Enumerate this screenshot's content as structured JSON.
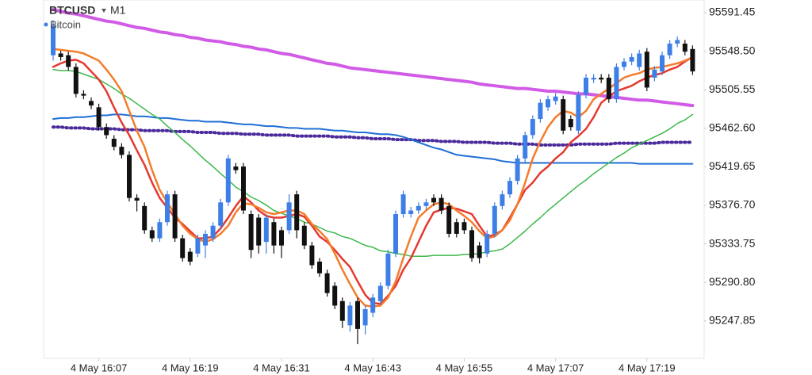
{
  "chart_data": {
    "type": "candlestick",
    "title": "BTCUSD",
    "timeframe": "M1",
    "subtitle": "Bitcoin",
    "up_color": "#3d7fe6",
    "down_color": "#111111",
    "ylim": [
      95206.2,
      95605.6
    ],
    "yticks": [
      95591.45,
      {
        "value": 95548.5,
        "label": "95548.50"
      },
      95505.55,
      {
        "value": 95462.6,
        "label": "95462.60"
      },
      95419.65,
      {
        "value": 95376.7,
        "label": "95376.70"
      },
      95333.75,
      {
        "value": 95290.8,
        "label": "95290.80"
      },
      95247.85
    ],
    "categories": [
      null,
      null,
      null,
      null,
      null,
      null,
      "4 May 16:07",
      null,
      null,
      null,
      null,
      null,
      null,
      null,
      null,
      null,
      null,
      null,
      "4 May 16:19",
      null,
      null,
      null,
      null,
      null,
      null,
      null,
      null,
      null,
      null,
      null,
      "4 May 16:31",
      null,
      null,
      null,
      null,
      null,
      null,
      null,
      null,
      null,
      null,
      null,
      "4 May 16:43",
      null,
      null,
      null,
      null,
      null,
      null,
      null,
      null,
      null,
      null,
      null,
      "4 May 16:55",
      null,
      null,
      null,
      null,
      null,
      null,
      null,
      null,
      null,
      null,
      null,
      "4 May 17:07",
      null,
      null,
      null,
      null,
      null,
      null,
      null,
      null,
      null,
      null,
      null,
      "4 May 17:19",
      null,
      null,
      null,
      null,
      null,
      null
    ],
    "open": [
      95544,
      95546,
      95544,
      95531,
      95501,
      95493,
      95486,
      95464,
      95451,
      95442,
      95433,
      95385,
      95376,
      95349,
      95340,
      95358,
      95389,
      95340,
      95325,
      95323,
      95332,
      95340,
      95354,
      95380,
      95420,
      95420,
      95367,
      95363,
      95336,
      95358,
      95349,
      95349,
      95389,
      95354,
      95332,
      95314,
      95301,
      95287,
      95270,
      95243,
      95270,
      95243,
      95257,
      95270,
      95287,
      95323,
      95367,
      95367,
      95371,
      95376,
      95385,
      95385,
      95376,
      95358,
      95358,
      95349,
      95332,
      95323,
      95345,
      95376,
      95389,
      95404,
      95429,
      95455,
      95473,
      95486,
      95493,
      95495,
      95473,
      95460,
      95500,
      95517,
      95519,
      95519,
      95495,
      95531,
      95537,
      95531,
      95548,
      95519,
      95526,
      95544,
      95557,
      95557,
      95551
    ],
    "high": [
      95583,
      95549,
      95548,
      95535,
      95505,
      95497,
      95490,
      95468,
      95455,
      95446,
      95437,
      95389,
      95380,
      95353,
      95362,
      95393,
      95393,
      95344,
      95329,
      95344,
      95349,
      95358,
      95384,
      95433,
      95424,
      95424,
      95371,
      95367,
      95367,
      95362,
      95353,
      95389,
      95393,
      95358,
      95336,
      95318,
      95305,
      95291,
      95274,
      95269,
      95274,
      95265,
      95278,
      95291,
      95327,
      95371,
      95393,
      95375,
      95380,
      95384,
      95389,
      95389,
      95380,
      95362,
      95362,
      95353,
      95336,
      95349,
      95380,
      95393,
      95408,
      95433,
      95459,
      95477,
      95495,
      95499,
      95502,
      95499,
      95477,
      95504,
      95523,
      95523,
      95523,
      95523,
      95535,
      95541,
      95546,
      95550,
      95552,
      95532,
      95548,
      95561,
      95565,
      95561,
      95555
    ],
    "low": [
      95538,
      95538,
      95527,
      95497,
      95495,
      95484,
      95460,
      95451,
      95438,
      95429,
      95381,
      95370,
      95345,
      95336,
      95336,
      95354,
      95336,
      95314,
      95310,
      95319,
      95318,
      95336,
      95350,
      95376,
      95412,
      95367,
      95318,
      95323,
      95323,
      95323,
      95318,
      95345,
      95340,
      95328,
      95306,
      95297,
      95275,
      95261,
      95240,
      95236,
      95222,
      95233,
      95252,
      95266,
      95283,
      95319,
      95363,
      95363,
      95367,
      95372,
      95376,
      95367,
      95341,
      95341,
      95345,
      95314,
      95312,
      95319,
      95341,
      95372,
      95385,
      95400,
      95425,
      95451,
      95469,
      95482,
      95489,
      95456,
      95460,
      95456,
      95496,
      95513,
      95513,
      95491,
      95491,
      95527,
      95533,
      95527,
      95504,
      95515,
      95522,
      95540,
      95553,
      95544,
      95522
    ],
    "close": [
      95577,
      95542,
      95531,
      95501,
      95499,
      95488,
      95464,
      95455,
      95442,
      95433,
      95385,
      95382,
      95349,
      95340,
      95358,
      95389,
      95340,
      95318,
      95314,
      95340,
      95345,
      95354,
      95380,
      95429,
      95416,
      95371,
      95327,
      95332,
      95363,
      95332,
      95332,
      95380,
      95349,
      95332,
      95310,
      95301,
      95279,
      95265,
      95248,
      95265,
      95239,
      95261,
      95274,
      95287,
      95323,
      95367,
      95389,
      95371,
      95376,
      95380,
      95380,
      95371,
      95345,
      95345,
      95349,
      95318,
      95318,
      95345,
      95376,
      95389,
      95404,
      95429,
      95455,
      95473,
      95491,
      95495,
      95498,
      95460,
      95464,
      95500,
      95519,
      95519,
      95517,
      95495,
      95531,
      95537,
      95542,
      95546,
      95508,
      95528,
      95544,
      95557,
      95561,
      95548,
      95526
    ],
    "lines": [
      {
        "color": "#d15be6",
        "width": 4,
        "style": "solid",
        "values": [
          95595,
          95593,
          95591,
          95590,
          95588,
          95586,
          95584,
          95582,
          95581,
          95579,
          95577,
          95575,
          95574,
          95572,
          95570,
          95569,
          95567,
          95566,
          95564,
          95563,
          95561,
          95560,
          95559,
          95557,
          95556,
          95554,
          95553,
          95551,
          95550,
          95548,
          95546,
          95545,
          95543,
          95541,
          95539,
          95537,
          95535,
          95534,
          95532,
          95530,
          95529,
          95528,
          95527,
          95526,
          95525,
          95524,
          95523,
          95522,
          95521,
          95520,
          95519,
          95518,
          95517,
          95516,
          95515,
          95514,
          95512,
          95511,
          95510,
          95509,
          95508,
          95507,
          95507,
          95506,
          95505,
          95504,
          95504,
          95503,
          95502,
          95501,
          95501,
          95500,
          95499,
          95498,
          95497,
          95496,
          95495,
          95494,
          95494,
          95493,
          95492,
          95491,
          95490,
          95489,
          95488
        ]
      },
      {
        "color": "#4b2a9c",
        "width": 4,
        "style": "dotted",
        "values": [
          95464,
          95464,
          95463,
          95463,
          95463,
          95462,
          95462,
          95462,
          95462,
          95461,
          95461,
          95461,
          95460,
          95460,
          95460,
          95460,
          95459,
          95459,
          95459,
          95458,
          95458,
          95458,
          95457,
          95457,
          95457,
          95456,
          95456,
          95456,
          95455,
          95455,
          95455,
          95455,
          95454,
          95454,
          95454,
          95454,
          95454,
          95453,
          95453,
          95453,
          95452,
          95452,
          95451,
          95451,
          95451,
          95450,
          95450,
          95450,
          95449,
          95449,
          95449,
          95448,
          95448,
          95448,
          95447,
          95447,
          95447,
          95447,
          95446,
          95446,
          95446,
          95445,
          95445,
          95445,
          95444,
          95444,
          95444,
          95444,
          95444,
          95445,
          95445,
          95445,
          95445,
          95445,
          95446,
          95446,
          95446,
          95446,
          95446,
          95446,
          95447,
          95447,
          95447,
          95447,
          95447
        ]
      },
      {
        "color": "#1f6fd6",
        "width": 2,
        "style": "solid",
        "values": [
          95473,
          95474,
          95474,
          95475,
          95475,
          95476,
          95477,
          95477,
          95478,
          95478,
          95477,
          95476,
          95476,
          95475,
          95474,
          95474,
          95473,
          95472,
          95471,
          95471,
          95470,
          95470,
          95470,
          95469,
          95468,
          95467,
          95467,
          95466,
          95465,
          95465,
          95464,
          95463,
          95463,
          95462,
          95462,
          95462,
          95461,
          95460,
          95460,
          95459,
          95458,
          95458,
          95457,
          95456,
          95456,
          95455,
          95453,
          95450,
          95447,
          95444,
          95441,
          95439,
          95436,
          95433,
          95432,
          95431,
          95430,
          95429,
          95428,
          95426,
          95425,
          95424,
          95424,
          95424,
          95424,
          95424,
          95424,
          95424,
          95424,
          95424,
          95424,
          95424,
          95424,
          95424,
          95424,
          95424,
          95424,
          95423,
          95423,
          95423,
          95423,
          95423,
          95423,
          95423,
          95423
        ]
      },
      {
        "color": "#3cb84a",
        "width": 1.5,
        "style": "solid",
        "values": [
          95528,
          95527,
          95527,
          95526,
          95523,
          95520,
          95517,
          95512,
          95507,
          95501,
          95496,
          95490,
          95484,
          95478,
          95473,
          95465,
          95458,
          95450,
          95443,
          95435,
          95427,
          95420,
          95412,
          95405,
          95397,
          95392,
          95386,
          95382,
          95377,
          95371,
          95368,
          95365,
          95362,
          95358,
          95356,
          95352,
          95348,
          95346,
          95342,
          95340,
          95336,
          95332,
          95330,
          95326,
          95325,
          95323,
          95322,
          95320,
          95320,
          95320,
          95321,
          95321,
          95321,
          95321,
          95322,
          95322,
          95323,
          95325,
          95326,
          95328,
          95334,
          95341,
          95348,
          95356,
          95363,
          95371,
          95378,
          95385,
          95392,
          95399,
          95405,
          95412,
          95418,
          95424,
          95430,
          95435,
          95441,
          95445,
          95449,
          95453,
          95457,
          95462,
          95468,
          95472,
          95478
        ]
      },
      {
        "color": "#e5392f",
        "width": 2.5,
        "style": "solid",
        "values": [
          95531,
          95535,
          95538,
          95539,
          95535,
          95526,
          95517,
          95504,
          95486,
          95469,
          95455,
          95438,
          95422,
          95402,
          95385,
          95374,
          95363,
          95356,
          95348,
          95340,
          95340,
          95342,
          95351,
          95363,
          95376,
          95387,
          95380,
          95371,
          95365,
          95363,
          95363,
          95365,
          95367,
          95364,
          95354,
          95342,
          95336,
          95327,
          95317,
          95308,
          95292,
          95277,
          95268,
          95267,
          95276,
          95287,
          95305,
          95318,
          95336,
          95354,
          95369,
          95372,
          95374,
          95373,
          95370,
          95367,
          95354,
          95342,
          95344,
          95349,
          95363,
          95378,
          95394,
          95402,
          95413,
          95420,
          95429,
          95436,
          95447,
          95454,
          95462,
          95475,
          95491,
          95498,
          95504,
          95507,
          95510,
          95515,
          95519,
          95522,
          95524,
          95528,
          95531,
          95537,
          95542
        ]
      },
      {
        "color": "#f47c2c",
        "width": 2.5,
        "style": "solid",
        "values": [
          95551,
          95550,
          95549,
          95548,
          95546,
          95542,
          95538,
          95528,
          95517,
          95504,
          95482,
          95460,
          95442,
          95416,
          95394,
          95380,
          95367,
          95354,
          95345,
          95339,
          95336,
          95339,
          95345,
          95354,
          95369,
          95379,
          95378,
          95374,
          95369,
          95367,
          95369,
          95371,
          95371,
          95367,
          95356,
          95348,
          95339,
          95323,
          95305,
          95289,
          95274,
          95265,
          95264,
          95265,
          95274,
          95292,
          95318,
          95342,
          95363,
          95371,
          95378,
          95380,
          95378,
          95371,
          95365,
          95358,
          95348,
          95340,
          95342,
          95349,
          95360,
          95378,
          95402,
          95429,
          95448,
          95464,
          95475,
          95482,
          95480,
          95475,
          95482,
          95495,
          95501,
          95507,
          95513,
          95519,
          95522,
          95524,
          95528,
          95530,
          95531,
          95533,
          95535,
          95538,
          95542
        ]
      }
    ]
  }
}
